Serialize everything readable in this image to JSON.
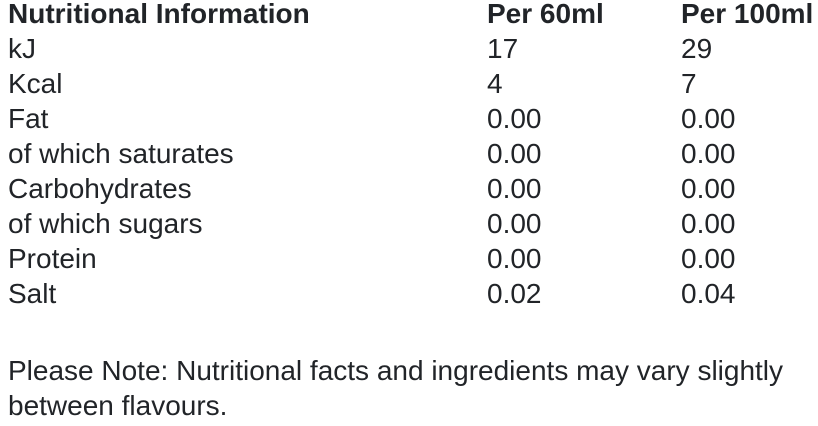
{
  "page": {
    "background_color": "#ffffff",
    "text_color": "#212428"
  },
  "table": {
    "header": {
      "label": "Nutritional Information",
      "per60": "Per 60ml",
      "per100": "Per 100ml"
    },
    "rows": [
      {
        "label": "kJ",
        "per60": "17",
        "per100": "29"
      },
      {
        "label": "Kcal",
        "per60": "4",
        "per100": "7"
      },
      {
        "label": "Fat",
        "per60": "0.00",
        "per100": "0.00"
      },
      {
        "label": "of which saturates",
        "per60": "0.00",
        "per100": "0.00"
      },
      {
        "label": "Carbohydrates",
        "per60": "0.00",
        "per100": "0.00"
      },
      {
        "label": "of which sugars",
        "per60": "0.00",
        "per100": "0.00"
      },
      {
        "label": "Protein",
        "per60": "0.00",
        "per100": "0.00"
      },
      {
        "label": "Salt",
        "per60": "0.02",
        "per100": "0.04"
      }
    ]
  },
  "note": {
    "text": "Please Note: Nutritional facts and ingredients may vary slightly between flavours."
  }
}
